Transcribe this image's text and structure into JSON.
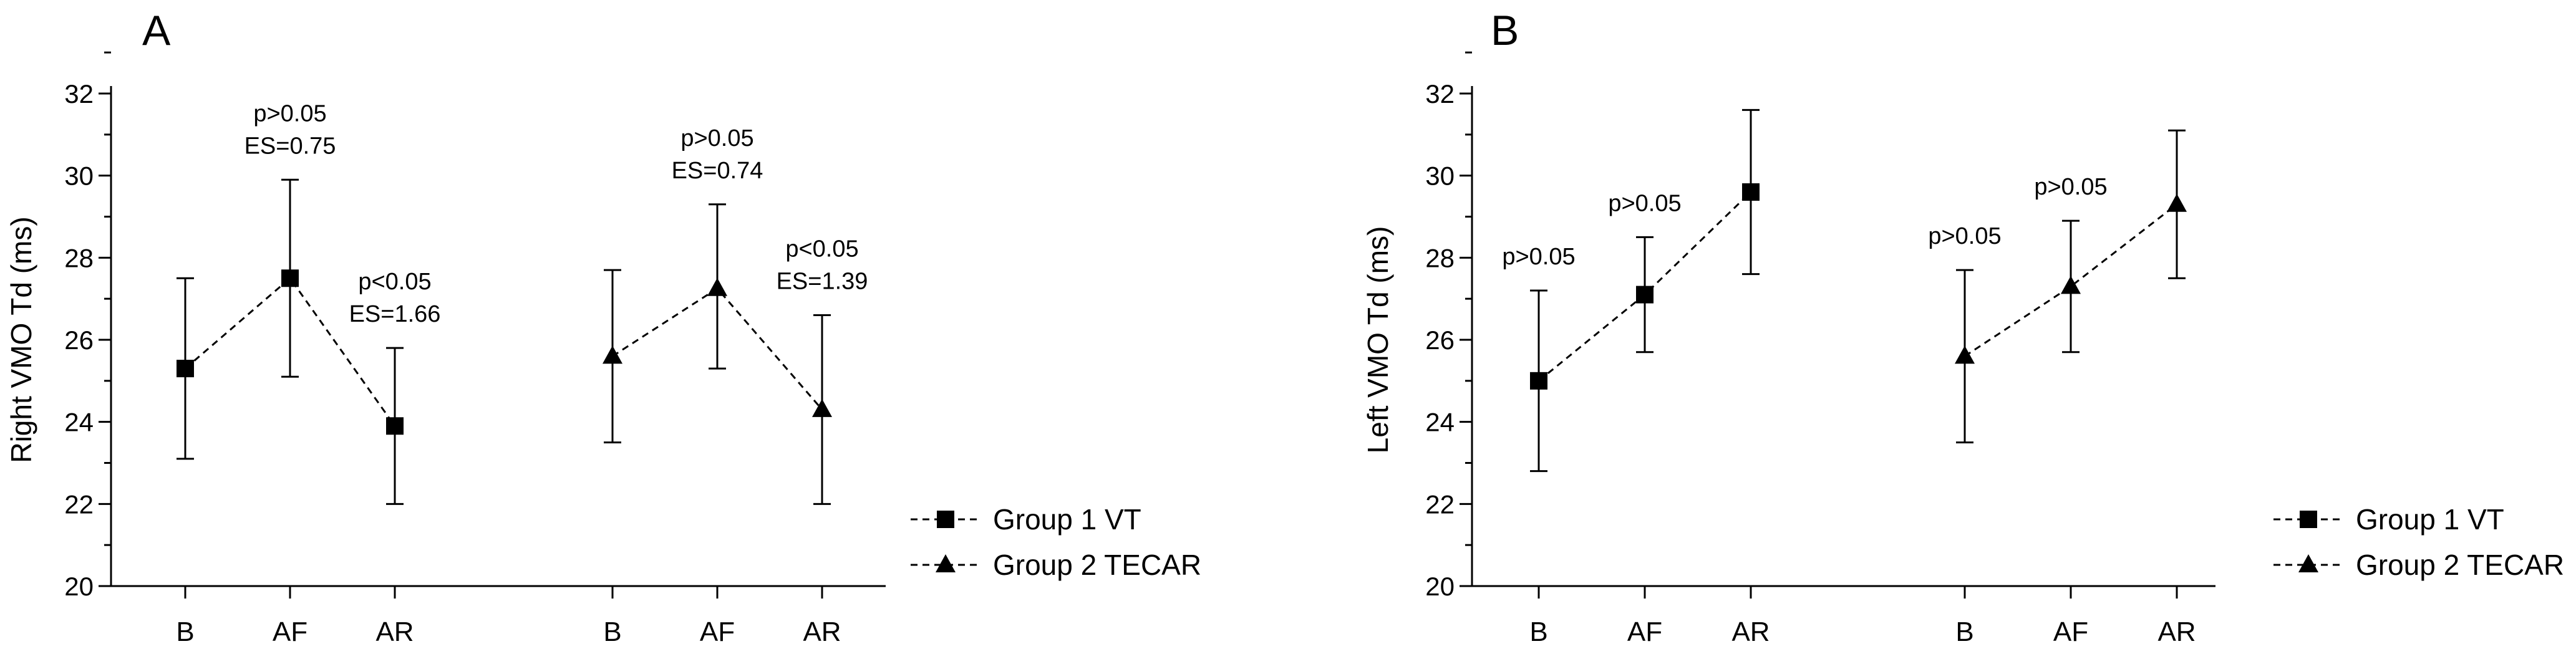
{
  "chart_data": [
    {
      "type": "line",
      "panel_label": "A",
      "ylabel": "Right VMO Td (ms)",
      "ylim": [
        20,
        32
      ],
      "yticks": [
        20,
        22,
        24,
        26,
        28,
        30,
        32
      ],
      "categories": [
        "B",
        "AF",
        "AR"
      ],
      "series": [
        {
          "name": "Group 1 VT",
          "marker": "square",
          "values": [
            25.3,
            27.5,
            23.9
          ],
          "error_high": [
            27.5,
            29.9,
            25.8
          ],
          "error_low": [
            23.1,
            25.1,
            22.0
          ],
          "annotations": [
            {
              "at": "AF",
              "lines": [
                "p>0.05",
                "ES=0.75"
              ]
            },
            {
              "at": "AR",
              "lines": [
                "p<0.05",
                "ES=1.66"
              ]
            }
          ]
        },
        {
          "name": "Group 2 TECAR",
          "marker": "triangle",
          "values": [
            25.6,
            27.25,
            24.3
          ],
          "error_high": [
            27.7,
            29.3,
            26.6
          ],
          "error_low": [
            23.5,
            25.3,
            22.0
          ],
          "annotations": [
            {
              "at": "AF",
              "lines": [
                "p>0.05",
                "ES=0.74"
              ]
            },
            {
              "at": "AR",
              "lines": [
                "p<0.05",
                "ES=1.39"
              ]
            }
          ]
        }
      ],
      "legend": [
        "Group 1 VT",
        "Group 2 TECAR"
      ]
    },
    {
      "type": "line",
      "panel_label": "B",
      "ylabel": "Left VMO Td (ms)",
      "ylim": [
        20,
        32
      ],
      "yticks": [
        20,
        22,
        24,
        26,
        28,
        30,
        32
      ],
      "categories": [
        "B",
        "AF",
        "AR"
      ],
      "series": [
        {
          "name": "Group 1 VT",
          "marker": "square",
          "values": [
            25.0,
            27.1,
            29.6
          ],
          "error_high": [
            27.2,
            28.5,
            31.6
          ],
          "error_low": [
            22.8,
            25.7,
            27.6
          ],
          "annotations": [
            {
              "at": "B",
              "lines": [
                "p>0.05"
              ]
            },
            {
              "at": "AF",
              "lines": [
                "p>0.05"
              ]
            }
          ]
        },
        {
          "name": "Group 2 TECAR",
          "marker": "triangle",
          "values": [
            25.6,
            27.3,
            29.3
          ],
          "error_high": [
            27.7,
            28.9,
            31.1
          ],
          "error_low": [
            23.5,
            25.7,
            27.5
          ],
          "annotations": [
            {
              "at": "B",
              "lines": [
                "p>0.05"
              ]
            },
            {
              "at": "AF",
              "lines": [
                "p>0.05"
              ]
            }
          ]
        }
      ],
      "legend": [
        "Group 1 VT",
        "Group 2 TECAR"
      ]
    }
  ]
}
